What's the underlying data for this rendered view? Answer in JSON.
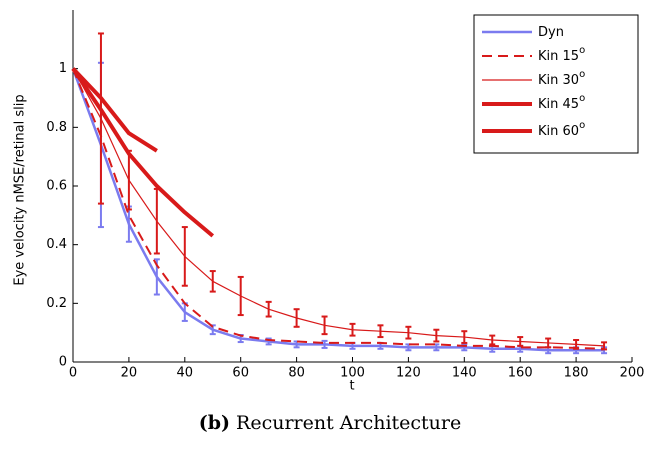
{
  "chart_data": {
    "type": "line",
    "x_label": "t",
    "y_label": "Eye velocity nMSE/retinal slip",
    "caption": {
      "label": "(b)",
      "text": "Recurrent Architecture"
    },
    "x": [
      0,
      10,
      20,
      30,
      40,
      50,
      60,
      70,
      80,
      90,
      100,
      110,
      120,
      130,
      140,
      150,
      160,
      170,
      180,
      190
    ],
    "xlim": [
      0,
      200
    ],
    "xticks": [
      0,
      20,
      40,
      60,
      80,
      100,
      120,
      140,
      160,
      180,
      200
    ],
    "ylim": [
      0,
      1.2
    ],
    "yticks": [
      0,
      0.2,
      0.4,
      0.6,
      0.8,
      1
    ],
    "legend": "upper right",
    "series": [
      {
        "name": "Dyn",
        "superscript": null,
        "color": "#7b7bef",
        "width": 2.5,
        "dashed": false,
        "values": [
          1,
          0.74,
          0.47,
          0.29,
          0.17,
          0.11,
          0.08,
          0.07,
          0.06,
          0.06,
          0.055,
          0.055,
          0.05,
          0.05,
          0.05,
          0.045,
          0.045,
          0.04,
          0.04,
          0.04
        ],
        "errors": [
          null,
          0.28,
          0.06,
          0.06,
          0.03,
          0.015,
          0.012,
          0.01,
          0.01,
          0.012,
          0.01,
          0.01,
          0.01,
          0.01,
          0.01,
          0.01,
          0.01,
          0.01,
          0.01,
          0.01
        ]
      },
      {
        "name": "Kin 15",
        "superscript": "o",
        "color": "#d81a1a",
        "width": 2,
        "dashed": true,
        "values": [
          1,
          0.77,
          0.5,
          0.33,
          0.2,
          0.12,
          0.09,
          0.075,
          0.07,
          0.065,
          0.065,
          0.065,
          0.06,
          0.06,
          0.055,
          0.055,
          0.05,
          0.05,
          0.048,
          0.045
        ],
        "errors": null
      },
      {
        "name": "Kin 30",
        "superscript": "o",
        "color": "#d81a1a",
        "width": 1.2,
        "dashed": false,
        "values": [
          1,
          0.83,
          0.62,
          0.48,
          0.36,
          0.275,
          0.225,
          0.18,
          0.15,
          0.125,
          0.11,
          0.105,
          0.1,
          0.09,
          0.085,
          0.075,
          0.07,
          0.065,
          0.06,
          0.055
        ],
        "errors": [
          null,
          0.29,
          0.1,
          0.11,
          0.1,
          0.035,
          0.065,
          0.025,
          0.03,
          0.03,
          0.02,
          0.02,
          0.02,
          0.02,
          0.02,
          0.015,
          0.015,
          0.015,
          0.015,
          0.012
        ]
      },
      {
        "name": "Kin 45",
        "superscript": "o",
        "color": "#d81a1a",
        "width": 4,
        "dashed": false,
        "values": [
          1,
          0.9,
          0.78,
          0.72,
          null,
          null,
          null,
          null,
          null,
          null,
          null,
          null,
          null,
          null,
          null,
          null,
          null,
          null,
          null,
          null
        ],
        "errors": null
      },
      {
        "name": "Kin 60",
        "superscript": "o",
        "color": "#d81a1a",
        "width": 4,
        "dashed": false,
        "values": [
          1,
          0.86,
          0.71,
          0.6,
          0.51,
          0.43,
          null,
          null,
          null,
          null,
          null,
          null,
          null,
          null,
          null,
          null,
          null,
          null,
          null,
          null
        ],
        "errors": null
      }
    ]
  }
}
